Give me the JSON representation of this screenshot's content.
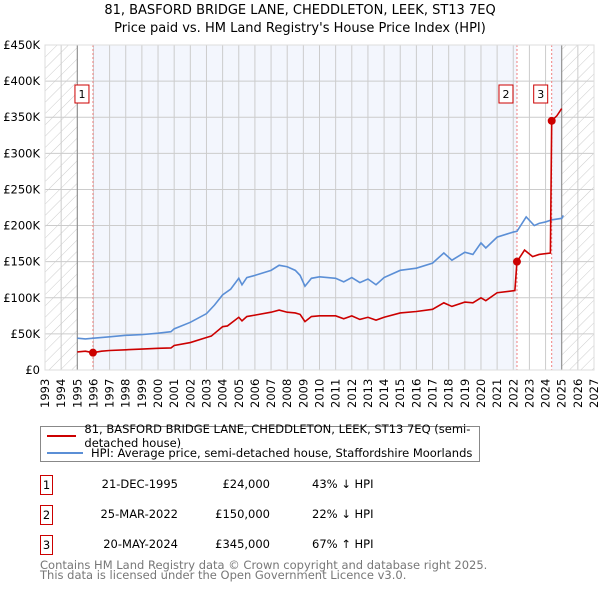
{
  "title": [
    "81, BASFORD BRIDGE LANE, CHEDDLETON, LEEK, ST13 7EQ",
    "Price paid vs. HM Land Registry's House Price Index (HPI)"
  ],
  "chart_data": {
    "type": "line",
    "title": "81, BASFORD BRIDGE LANE, CHEDDLETON, LEEK, ST13 7EQ - Price paid vs. HM Land Registry's House Price Index (HPI)",
    "xlim": [
      1993,
      2027
    ],
    "ylim": [
      0,
      450000
    ],
    "x_ticks": [
      "1993",
      "1994",
      "1995",
      "1996",
      "1997",
      "1998",
      "1999",
      "2000",
      "2001",
      "2002",
      "2003",
      "2004",
      "2005",
      "2006",
      "2007",
      "2008",
      "2009",
      "2010",
      "2011",
      "2012",
      "2013",
      "2014",
      "2015",
      "2016",
      "2017",
      "2018",
      "2019",
      "2020",
      "2021",
      "2022",
      "2023",
      "2024",
      "2025",
      "2026",
      "2027"
    ],
    "y_ticks": [
      {
        "v": 0,
        "label": "£0"
      },
      {
        "v": 50000,
        "label": "£50K"
      },
      {
        "v": 100000,
        "label": "£100K"
      },
      {
        "v": 150000,
        "label": "£150K"
      },
      {
        "v": 200000,
        "label": "£200K"
      },
      {
        "v": 250000,
        "label": "£250K"
      },
      {
        "v": 300000,
        "label": "£300K"
      },
      {
        "v": 350000,
        "label": "£350K"
      },
      {
        "v": 400000,
        "label": "£400K"
      },
      {
        "v": 450000,
        "label": "£450K"
      }
    ],
    "data_range": [
      1995.0,
      2025.1
    ],
    "grid": true,
    "series": [
      {
        "name": "81, BASFORD BRIDGE LANE, CHEDDLETON, LEEK, ST13 7EQ (semi-detached house)",
        "color": "#cc0000",
        "x": [
          1995.0,
          1995.5,
          1995.97,
          1996.5,
          1997,
          1998,
          1999,
          2000,
          2000.8,
          2001,
          2002,
          2003,
          2003.3,
          2004,
          2004.3,
          2005,
          2005.2,
          2005.5,
          2006,
          2007,
          2007.5,
          2008,
          2008.5,
          2008.8,
          2009.1,
          2009.5,
          2010,
          2011,
          2011.5,
          2012,
          2012.5,
          2013,
          2013.5,
          2014,
          2015,
          2016,
          2017,
          2017.7,
          2018.2,
          2019,
          2019.5,
          2020,
          2020.3,
          2021,
          2022.1,
          2022.23,
          2022.7,
          2023.2,
          2023.6,
          2024.3,
          2024.38,
          2024.7,
          2025.0
        ],
        "y": [
          25000,
          26000,
          24000,
          26000,
          27000,
          28000,
          29000,
          30000,
          30500,
          34000,
          38000,
          45000,
          47000,
          60000,
          61000,
          73000,
          68000,
          74000,
          76000,
          80000,
          83000,
          80000,
          79000,
          77000,
          67000,
          74000,
          75000,
          75000,
          71000,
          75000,
          70000,
          73000,
          69000,
          73000,
          79000,
          81000,
          84000,
          93000,
          88000,
          94000,
          93000,
          100000,
          96000,
          107000,
          110000,
          150000,
          166000,
          157000,
          160000,
          162000,
          345000,
          352000,
          362000
        ]
      },
      {
        "name": "HPI: Average price, semi-detached house, Staffordshire Moorlands",
        "color": "#5b8fd6",
        "x": [
          1995.0,
          1995.5,
          1996,
          1997,
          1998,
          1999,
          2000,
          2000.8,
          2001,
          2002,
          2003,
          2003.5,
          2004,
          2004.5,
          2005,
          2005.2,
          2005.5,
          2006,
          2007,
          2007.5,
          2008,
          2008.5,
          2008.8,
          2009.1,
          2009.5,
          2010,
          2011,
          2011.5,
          2012,
          2012.5,
          2013,
          2013.5,
          2014,
          2015,
          2016,
          2017,
          2017.7,
          2018.2,
          2019,
          2019.5,
          2020,
          2020.3,
          2021,
          2022,
          2022.23,
          2022.8,
          2023.3,
          2023.6,
          2024,
          2024.4,
          2025.0,
          2025.1
        ],
        "y": [
          44000,
          43000,
          44000,
          46000,
          48000,
          49000,
          51000,
          53000,
          57000,
          66000,
          78000,
          90000,
          104000,
          112000,
          127000,
          118000,
          128000,
          131000,
          138000,
          145000,
          143000,
          138000,
          131000,
          116000,
          127000,
          129000,
          127000,
          122000,
          128000,
          121000,
          126000,
          118000,
          128000,
          138000,
          141000,
          148000,
          162000,
          152000,
          163000,
          160000,
          176000,
          169000,
          184000,
          191000,
          192000,
          212000,
          200000,
          203000,
          205000,
          208000,
          210000,
          214000
        ]
      }
    ],
    "sales": [
      {
        "id": "1",
        "x": 1995.97,
        "date": "21-DEC-1995",
        "price": "£24,000",
        "price_value": 24000,
        "hpi": "43% ↓ HPI"
      },
      {
        "id": "2",
        "x": 2022.23,
        "date": "25-MAR-2022",
        "price": "£150,000",
        "price_value": 150000,
        "hpi": "22% ↓ HPI"
      },
      {
        "id": "3",
        "x": 2024.38,
        "date": "20-MAY-2024",
        "price": "£345,000",
        "price_value": 345000,
        "hpi": "67% ↑ HPI"
      }
    ]
  },
  "legend": {
    "property": "81, BASFORD BRIDGE LANE, CHEDDLETON, LEEK, ST13 7EQ (semi-detached house)",
    "hpi": "HPI: Average price, semi-detached house, Staffordshire Moorlands"
  },
  "footer": [
    "Contains HM Land Registry data © Crown copyright and database right 2025.",
    "This data is licensed under the Open Government Licence v3.0."
  ]
}
